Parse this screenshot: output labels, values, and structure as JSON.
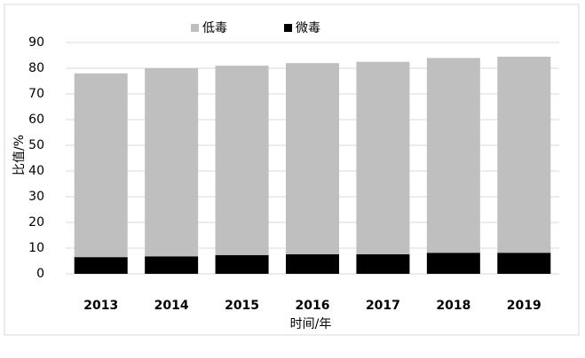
{
  "chart_data": {
    "type": "stacked-bar",
    "categories": [
      "2013",
      "2014",
      "2015",
      "2016",
      "2017",
      "2018",
      "2019"
    ],
    "series": [
      {
        "name": "低毒",
        "color": "#bfbfbf",
        "values": [
          71.5,
          73.2,
          73.7,
          74.4,
          74.9,
          75.8,
          76.3
        ]
      },
      {
        "name": "微毒",
        "color": "#000000",
        "values": [
          6.5,
          6.8,
          7.3,
          7.6,
          7.6,
          8.2,
          8.2
        ]
      }
    ],
    "y_label": "比值/%",
    "x_label": "时间/年",
    "ylim": [
      0,
      90
    ],
    "yticks": [
      0,
      10,
      20,
      30,
      40,
      50,
      60,
      70,
      80,
      90
    ],
    "grid": true,
    "legend": "top"
  }
}
